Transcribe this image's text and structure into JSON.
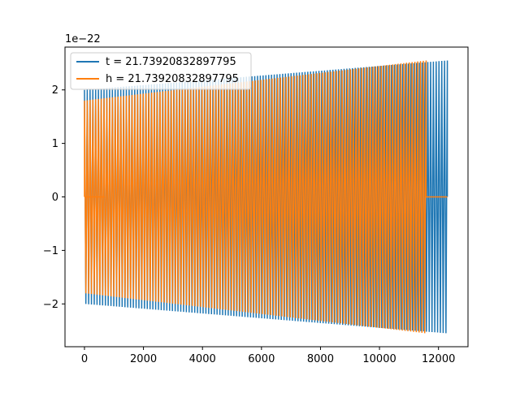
{
  "chart_data": {
    "type": "line",
    "title": "",
    "xlabel": "",
    "ylabel": "",
    "y_offset_label": "1e−22",
    "xlim": [
      -660,
      13000
    ],
    "ylim": [
      -2.8,
      2.8
    ],
    "x_ticks": [
      0,
      2000,
      4000,
      6000,
      8000,
      10000,
      12000
    ],
    "x_tick_labels": [
      "0",
      "2000",
      "4000",
      "6000",
      "8000",
      "10000",
      "12000"
    ],
    "y_ticks": [
      -2,
      -1,
      0,
      1,
      2
    ],
    "y_tick_labels": [
      "−2",
      "−1",
      "0",
      "1",
      "2"
    ],
    "grid": false,
    "legend_position": "top-left",
    "series": [
      {
        "name": "t = 21.73920832897795",
        "color": "#1f77b4",
        "x_start": 0,
        "x_end": 12300,
        "amp_start": 2.0,
        "amp_end": 2.55,
        "cycles": 130,
        "zero_tail_start": null
      },
      {
        "name": "h = 21.73920832897795",
        "color": "#ff7f0e",
        "x_start": 0,
        "x_end": 11580,
        "amp_start": 1.8,
        "amp_end": 2.55,
        "cycles": 122,
        "zero_tail_start": 11580,
        "zero_tail_end": 12300,
        "zero_head_end": 700
      }
    ]
  }
}
